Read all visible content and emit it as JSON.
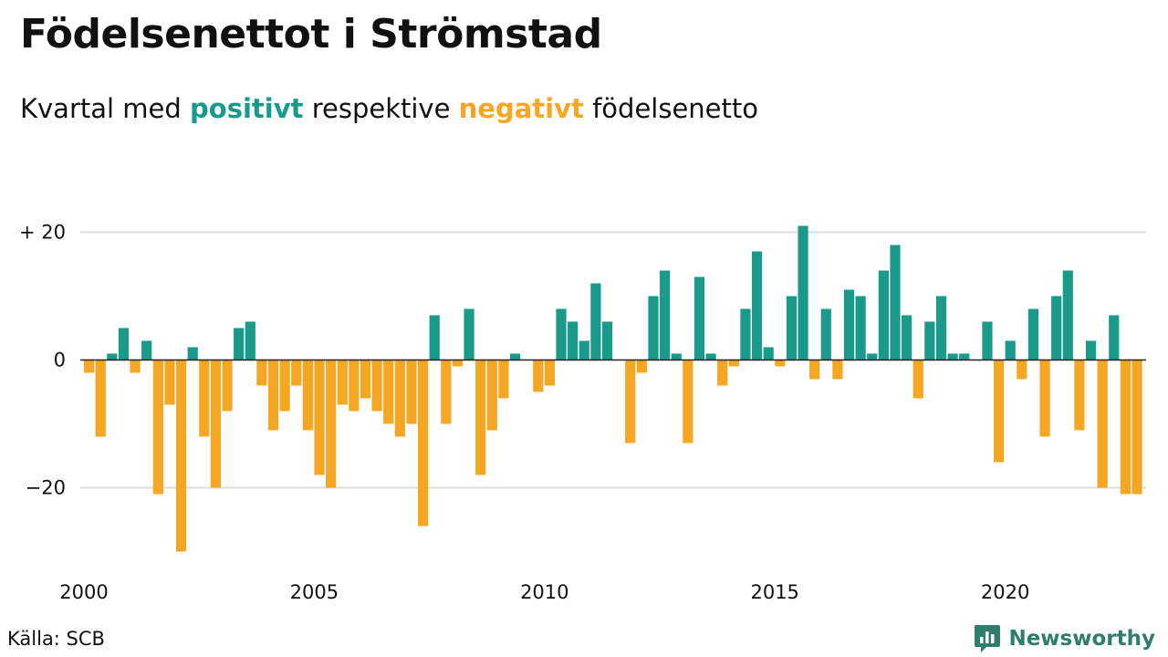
{
  "title": "Födelsenettot i Strömstad",
  "subtitle": {
    "prefix": "Kvartal med ",
    "positive_word": "positivt",
    "middle": " respektive ",
    "negative_word": "negativt",
    "suffix": " födelsenetto"
  },
  "source": "Källa: SCB",
  "brand": {
    "name": "Newsworthy",
    "icon": "bar-chart-speech-bubble-icon"
  },
  "colors": {
    "positive": "#1a9a8a",
    "negative": "#f5a623",
    "grid": "#dddddd",
    "brand": "#2f7d6e"
  },
  "chart_data": {
    "type": "bar",
    "x_unit": "quarter",
    "x_start": "2000 Q1",
    "xlim": [
      "2000 Q1",
      "2023 Q1"
    ],
    "ylim": [
      -32,
      23
    ],
    "y_ticks": [
      20,
      0,
      -20
    ],
    "y_tick_labels": [
      "+ 20",
      "0",
      "−20"
    ],
    "x_ticks": [
      2000,
      2005,
      2010,
      2015,
      2020
    ],
    "x_tick_labels": [
      "2000",
      "2005",
      "2010",
      "2015",
      "2020"
    ],
    "grid": true,
    "values": [
      -2,
      -12,
      1,
      5,
      -2,
      3,
      -21,
      -7,
      -30,
      2,
      -12,
      -20,
      -8,
      5,
      6,
      -4,
      -11,
      -8,
      -4,
      -11,
      -18,
      -20,
      -7,
      -8,
      -6,
      -8,
      -10,
      -12,
      -10,
      -26,
      7,
      -10,
      -1,
      8,
      -18,
      -11,
      -6,
      1,
      0,
      -5,
      -4,
      8,
      6,
      3,
      12,
      6,
      0,
      -13,
      -2,
      10,
      14,
      1,
      -13,
      13,
      1,
      -4,
      -1,
      8,
      17,
      2,
      -1,
      10,
      21,
      -3,
      8,
      -3,
      11,
      10,
      1,
      14,
      18,
      7,
      -6,
      6,
      10,
      1,
      1,
      0,
      6,
      -16,
      3,
      -3,
      8,
      -12,
      10,
      14,
      -11,
      3,
      -20,
      7,
      -21,
      -21
    ]
  }
}
